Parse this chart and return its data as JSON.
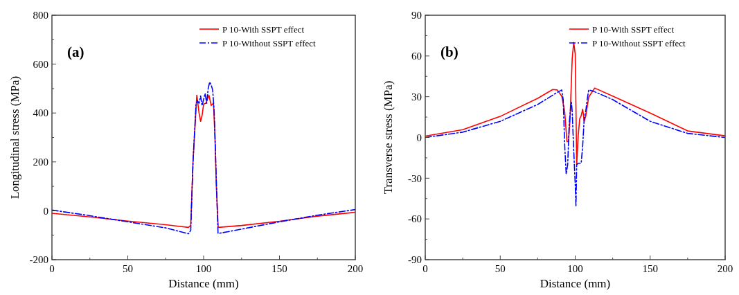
{
  "chart_data": [
    {
      "type": "line",
      "xlabel": "Distance (mm)",
      "ylabel": "Longitudinal stress (MPa)",
      "annotations": [
        "(a)"
      ],
      "xlim": [
        0,
        200
      ],
      "xticks": [
        0,
        50,
        100,
        150,
        200
      ],
      "ylim": [
        -200,
        800
      ],
      "yticks": [
        -200,
        0,
        200,
        400,
        600,
        800
      ],
      "legend": "top right",
      "grid": false,
      "series": [
        {
          "name": "P 10-With SSPT effect",
          "color": "#ff0000",
          "line_style": "solid",
          "x": [
            0,
            25,
            50,
            75,
            90,
            91.5,
            93,
            95.5,
            97,
            98,
            99,
            100,
            101.5,
            103.5,
            105,
            106.5,
            107.5,
            108.4,
            109.6,
            125,
            150,
            175,
            200
          ],
          "values": [
            -10,
            -25,
            -42,
            -57,
            -68,
            -60,
            200,
            473,
            400,
            366,
            390,
            436,
            440,
            473,
            431,
            440,
            300,
            96,
            -68,
            -60,
            -43,
            -22,
            -6
          ]
        },
        {
          "name": "P 10-Without SSPT effect",
          "color": "#0000ff",
          "line_style": "dashed",
          "x": [
            0,
            25,
            50,
            75,
            90,
            91.5,
            93,
            95,
            96,
            97,
            98,
            99,
            100,
            101,
            102,
            103,
            104,
            105,
            106,
            107,
            108.5,
            109.5,
            125,
            150,
            175,
            200
          ],
          "values": [
            3,
            -20,
            -45,
            -70,
            -94,
            -80,
            200,
            436,
            450,
            440,
            470,
            430,
            456,
            480,
            440,
            500,
            527,
            515,
            493,
            400,
            100,
            -93,
            -75,
            -45,
            -18,
            5
          ]
        }
      ]
    },
    {
      "type": "line",
      "xlabel": "Distance (mm)",
      "ylabel": "Transverse stress (MPa)",
      "annotations": [
        "(b)"
      ],
      "xlim": [
        0,
        200
      ],
      "xticks": [
        0,
        50,
        100,
        150,
        200
      ],
      "ylim": [
        -90,
        90
      ],
      "yticks": [
        -90,
        -60,
        -30,
        0,
        30,
        60,
        90
      ],
      "legend": "top right",
      "grid": false,
      "series": [
        {
          "name": "P 10-With SSPT effect",
          "color": "#ff0000",
          "line_style": "solid",
          "x": [
            0,
            25,
            50,
            75,
            85,
            88,
            91,
            93,
            94.5,
            95.5,
            96.5,
            98,
            99,
            100,
            100.5,
            101,
            102,
            103,
            104,
            105,
            106,
            107,
            109,
            113,
            125,
            150,
            175,
            200
          ],
          "values": [
            1,
            5.7,
            15.5,
            28.8,
            35.3,
            35,
            30.5,
            19,
            -3,
            -3,
            12,
            58,
            70,
            61.6,
            22.6,
            -20,
            1,
            13.7,
            16,
            20.8,
            12,
            15.5,
            29.7,
            36.4,
            30.5,
            18,
            4.8,
            1.2
          ]
        },
        {
          "name": "P 10-Without SSPT effect",
          "color": "#0000ff",
          "line_style": "dashed",
          "x": [
            0,
            25,
            50,
            75,
            88,
            91,
            92,
            93,
            94,
            95,
            96,
            97,
            97.5,
            98,
            99,
            100,
            100.5,
            101,
            102,
            104,
            105,
            106,
            107,
            108,
            109,
            112,
            125,
            150,
            175,
            200
          ],
          "values": [
            0,
            3.9,
            11.9,
            24.3,
            33.2,
            35,
            27.9,
            -5.9,
            -27,
            -20,
            10,
            22.6,
            26,
            19,
            -9.4,
            -34,
            -51,
            -20,
            -19,
            -19,
            -5.9,
            13.7,
            19,
            27.9,
            35,
            34.1,
            27.9,
            11.9,
            3,
            0
          ]
        }
      ]
    }
  ]
}
